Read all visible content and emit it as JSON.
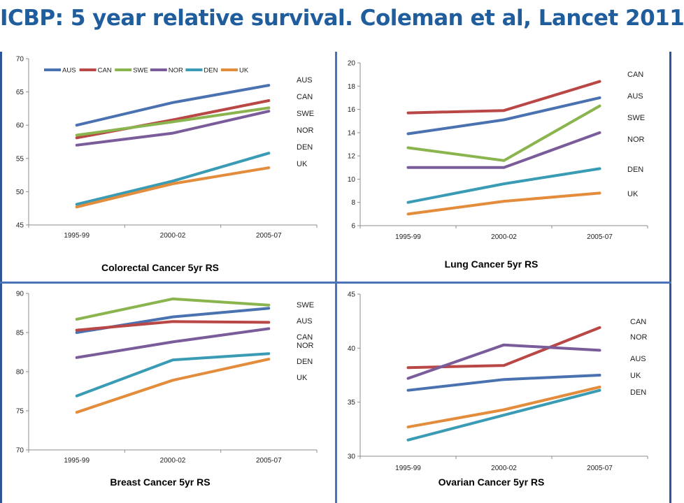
{
  "slide_title": "ICBP: 5 year relative survival. Coleman et al, Lancet 2011",
  "colors": {
    "AUS": "#4a72b0",
    "CAN": "#b94745",
    "SWE": "#8ab44d",
    "NOR": "#7a5c9a",
    "DEN": "#3a9bb4",
    "UK": "#e38c3c",
    "title": "#1f5d9c",
    "frame": "#2e5597"
  },
  "chart_data": [
    {
      "type": "line",
      "title": "Colorectal Cancer 5yr RS",
      "categories": [
        "1995-99",
        "2000-02",
        "2005-07"
      ],
      "ylim": [
        45,
        70
      ],
      "yticks": [
        "45",
        "50",
        "55",
        "60",
        "65",
        "70"
      ],
      "legend": {
        "position": "top",
        "entries": [
          "AUS",
          "CAN",
          "SWE",
          "NOR",
          "DEN",
          "UK"
        ]
      },
      "series": [
        {
          "name": "AUS",
          "values": [
            60.0,
            63.4,
            66.0
          ]
        },
        {
          "name": "CAN",
          "values": [
            58.1,
            60.8,
            63.7
          ]
        },
        {
          "name": "SWE",
          "values": [
            58.5,
            60.5,
            62.6
          ]
        },
        {
          "name": "NOR",
          "values": [
            57.0,
            58.8,
            62.1
          ]
        },
        {
          "name": "DEN",
          "values": [
            48.1,
            51.6,
            55.8
          ]
        },
        {
          "name": "UK",
          "values": [
            47.7,
            51.2,
            53.6
          ]
        }
      ],
      "end_labels": [
        "AUS",
        "CAN",
        "SWE",
        "NOR",
        "DEN",
        "UK"
      ]
    },
    {
      "type": "line",
      "title": "Lung Cancer 5yr RS",
      "categories": [
        "1995-99",
        "2000-02",
        "2005-07"
      ],
      "ylim": [
        6,
        20
      ],
      "yticks": [
        "6",
        "8",
        "10",
        "12",
        "14",
        "16",
        "18",
        "20"
      ],
      "series": [
        {
          "name": "CAN",
          "values": [
            15.7,
            15.9,
            18.4
          ]
        },
        {
          "name": "AUS",
          "values": [
            13.9,
            15.1,
            17.0
          ]
        },
        {
          "name": "SWE",
          "values": [
            12.7,
            11.6,
            16.3
          ]
        },
        {
          "name": "NOR",
          "values": [
            11.0,
            11.0,
            14.0
          ]
        },
        {
          "name": "DEN",
          "values": [
            8.0,
            9.6,
            10.9
          ]
        },
        {
          "name": "UK",
          "values": [
            7.0,
            8.1,
            8.8
          ]
        }
      ],
      "end_labels": [
        "CAN",
        "AUS",
        "SWE",
        "NOR",
        "DEN",
        "UK"
      ]
    },
    {
      "type": "line",
      "title": "Breast Cancer 5yr RS",
      "categories": [
        "1995-99",
        "2000-02",
        "2005-07"
      ],
      "ylim": [
        70,
        90
      ],
      "yticks": [
        "70",
        "75",
        "80",
        "85",
        "90"
      ],
      "series": [
        {
          "name": "SWE",
          "values": [
            86.7,
            89.3,
            88.5
          ]
        },
        {
          "name": "AUS",
          "values": [
            85.0,
            87.0,
            88.1
          ]
        },
        {
          "name": "CAN",
          "values": [
            85.3,
            86.4,
            86.3
          ]
        },
        {
          "name": "NOR",
          "values": [
            81.8,
            83.8,
            85.5
          ]
        },
        {
          "name": "DEN",
          "values": [
            76.9,
            81.5,
            82.3
          ]
        },
        {
          "name": "UK",
          "values": [
            74.8,
            78.9,
            81.6
          ]
        }
      ],
      "end_labels": [
        "SWE",
        "AUS",
        "CAN",
        "NOR",
        "DEN",
        "UK"
      ]
    },
    {
      "type": "line",
      "title": "Ovarian Cancer 5yr RS",
      "categories": [
        "1995-99",
        "2000-02",
        "2005-07"
      ],
      "ylim": [
        30,
        45
      ],
      "yticks": [
        "30",
        "35",
        "40",
        "45"
      ],
      "series": [
        {
          "name": "CAN",
          "values": [
            38.2,
            38.4,
            41.9
          ]
        },
        {
          "name": "NOR",
          "values": [
            37.2,
            40.3,
            39.8
          ]
        },
        {
          "name": "AUS",
          "values": [
            36.1,
            37.1,
            37.5
          ]
        },
        {
          "name": "UK",
          "values": [
            32.7,
            34.3,
            36.4
          ]
        },
        {
          "name": "DEN",
          "values": [
            31.5,
            33.8,
            36.1
          ]
        }
      ],
      "end_labels": [
        "CAN",
        "NOR",
        "AUS",
        "UK",
        "DEN"
      ]
    }
  ]
}
